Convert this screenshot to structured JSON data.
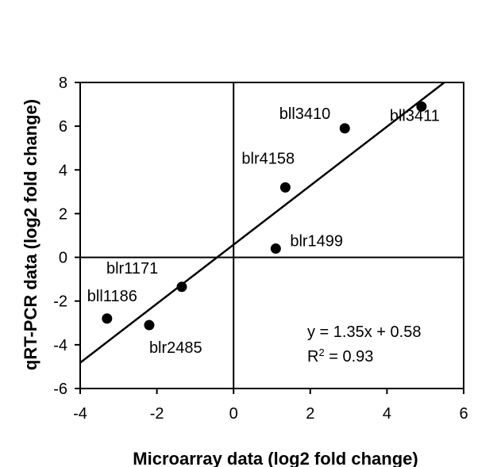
{
  "chart_data": {
    "type": "scatter",
    "title": "",
    "xlabel": "Microarray data (log2 fold change)",
    "ylabel": "qRT-PCR data (log2 fold change)",
    "xlim": [
      -4,
      6
    ],
    "ylim": [
      -6,
      8
    ],
    "xticks": [
      -4,
      -2,
      0,
      2,
      4,
      6
    ],
    "yticks": [
      -6,
      -4,
      -2,
      0,
      2,
      4,
      6,
      8
    ],
    "xtick_labels": [
      "-4",
      "-2",
      "0",
      "2",
      "4",
      "6"
    ],
    "ytick_labels": [
      "-6",
      "-4",
      "-2",
      "0",
      "2",
      "4",
      "6",
      "8"
    ],
    "grid": false,
    "zero_lines": true,
    "marker_color": "#000000",
    "points": [
      {
        "label": "bll3411",
        "x": 4.9,
        "y": 6.9
      },
      {
        "label": "bll3410",
        "x": 2.9,
        "y": 5.9
      },
      {
        "label": "blr4158",
        "x": 1.35,
        "y": 3.2
      },
      {
        "label": "blr1499",
        "x": 1.1,
        "y": 0.4
      },
      {
        "label": "blr1171",
        "x": -1.35,
        "y": -1.35
      },
      {
        "label": "bll1186",
        "x": -3.3,
        "y": -2.8
      },
      {
        "label": "blr2485",
        "x": -2.2,
        "y": -3.1
      }
    ],
    "fit": {
      "slope": 1.35,
      "intercept": 0.58,
      "equation": "y = 1.35x + 0.58",
      "r2_label": "R",
      "r2_sup": "2",
      "r2_value": " = 0.93"
    }
  }
}
